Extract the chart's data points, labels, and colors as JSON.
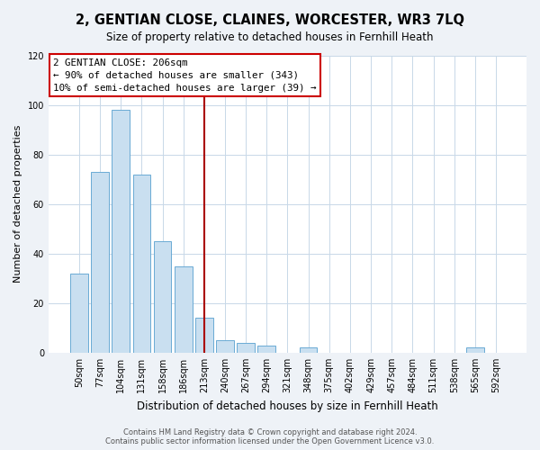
{
  "title": "2, GENTIAN CLOSE, CLAINES, WORCESTER, WR3 7LQ",
  "subtitle": "Size of property relative to detached houses in Fernhill Heath",
  "xlabel": "Distribution of detached houses by size in Fernhill Heath",
  "ylabel": "Number of detached properties",
  "bar_labels": [
    "50sqm",
    "77sqm",
    "104sqm",
    "131sqm",
    "158sqm",
    "186sqm",
    "213sqm",
    "240sqm",
    "267sqm",
    "294sqm",
    "321sqm",
    "348sqm",
    "375sqm",
    "402sqm",
    "429sqm",
    "457sqm",
    "484sqm",
    "511sqm",
    "538sqm",
    "565sqm",
    "592sqm"
  ],
  "bar_values": [
    32,
    73,
    98,
    72,
    45,
    35,
    14,
    5,
    4,
    3,
    0,
    2,
    0,
    0,
    0,
    0,
    0,
    0,
    0,
    2,
    0
  ],
  "bar_color": "#c9dff0",
  "bar_edge_color": "#6aaad4",
  "ylim": [
    0,
    120
  ],
  "yticks": [
    0,
    20,
    40,
    60,
    80,
    100,
    120
  ],
  "vline_x_index": 6,
  "annotation_title": "2 GENTIAN CLOSE: 206sqm",
  "annotation_line1": "← 90% of detached houses are smaller (343)",
  "annotation_line2": "10% of semi-detached houses are larger (39) →",
  "annotation_box_color": "#ffffff",
  "annotation_box_edge": "#cc0000",
  "vline_color": "#aa0000",
  "footer_line1": "Contains HM Land Registry data © Crown copyright and database right 2024.",
  "footer_line2": "Contains public sector information licensed under the Open Government Licence v3.0.",
  "background_color": "#eef2f7",
  "plot_bg_color": "#ffffff",
  "grid_color": "#c8d8e8",
  "title_fontsize": 10.5,
  "subtitle_fontsize": 8.5,
  "ylabel_fontsize": 8,
  "xlabel_fontsize": 8.5,
  "tick_fontsize": 7,
  "annotation_fontsize": 7.8,
  "footer_fontsize": 6
}
